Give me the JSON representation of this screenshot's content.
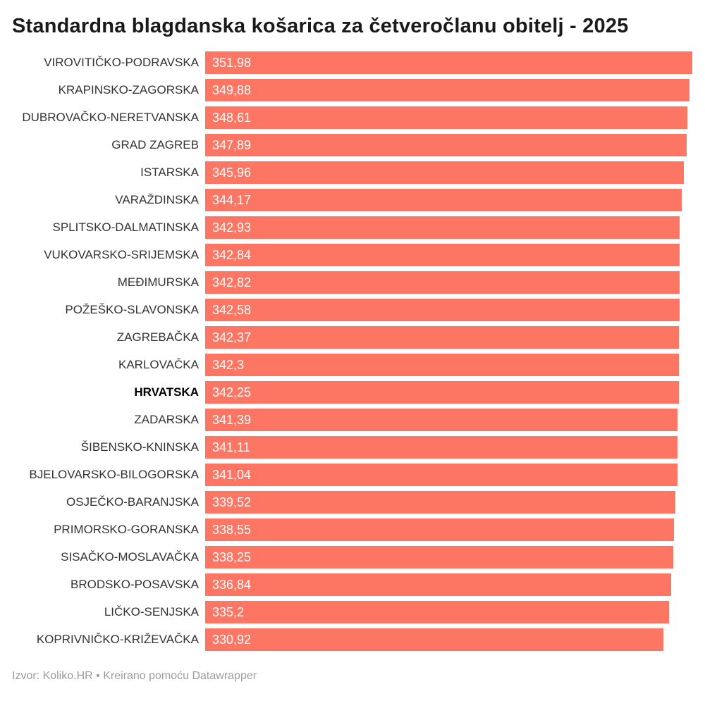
{
  "title": "Standardna blagdanska košarica za četveročlanu obitelj - 2025",
  "footer": "Izvor: Koliko.HR • Kreirano pomoću Datawrapper",
  "colors": {
    "bar": "#fd7663",
    "label_text": "#333333",
    "value_text": "#ffffff",
    "title_text": "#1a1a1a",
    "footer_text": "#9c9c9c",
    "background": "#ffffff"
  },
  "chart_data": {
    "type": "bar",
    "orientation": "horizontal",
    "title": "Standardna blagdanska košarica za četveročlanu obitelj - 2025",
    "xlabel": "",
    "ylabel": "",
    "xlim": [
      0,
      351.98
    ],
    "grid": false,
    "legend": false,
    "bar_labels_inside": true,
    "emphasized_category": "HRVATSKA",
    "source_note": "Izvor: Koliko.HR",
    "tool_note": "Kreirano pomoću Datawrapper",
    "categories": [
      "VIROVITIČKO-PODRAVSKA",
      "KRAPINSKO-ZAGORSKA",
      "DUBROVAČKO-NERETVANSKA",
      "GRAD ZAGREB",
      "ISTARSKA",
      "VARAŽDINSKA",
      "SPLITSKO-DALMATINSKA",
      "VUKOVARSKO-SRIJEMSKA",
      "MEĐIMURSKA",
      "POŽEŠKO-SLAVONSKA",
      "ZAGREBAČKA",
      "KARLOVAČKA",
      "HRVATSKA",
      "ZADARSKA",
      "ŠIBENSKO-KNINSKA",
      "BJELOVARSKO-BILOGORSKA",
      "OSJEČKO-BARANJSKA",
      "PRIMORSKO-GORANSKA",
      "SISAČKO-MOSLAVAČKA",
      "BRODSKO-POSAVSKA",
      "LIČKO-SENJSKA",
      "KOPRIVNIČKO-KRIŽEVAČKA"
    ],
    "values": [
      351.98,
      349.88,
      348.61,
      347.89,
      345.96,
      344.17,
      342.93,
      342.84,
      342.82,
      342.58,
      342.37,
      342.3,
      342.25,
      341.39,
      341.11,
      341.04,
      339.52,
      338.55,
      338.25,
      336.84,
      335.2,
      330.92
    ],
    "value_labels": [
      "351,98",
      "349,88",
      "348,61",
      "347,89",
      "345,96",
      "344,17",
      "342,93",
      "342,84",
      "342,82",
      "342,58",
      "342,37",
      "342,3",
      "342,25",
      "341,39",
      "341,11",
      "341,04",
      "339,52",
      "338,55",
      "338,25",
      "336,84",
      "335,2",
      "330,92"
    ]
  }
}
